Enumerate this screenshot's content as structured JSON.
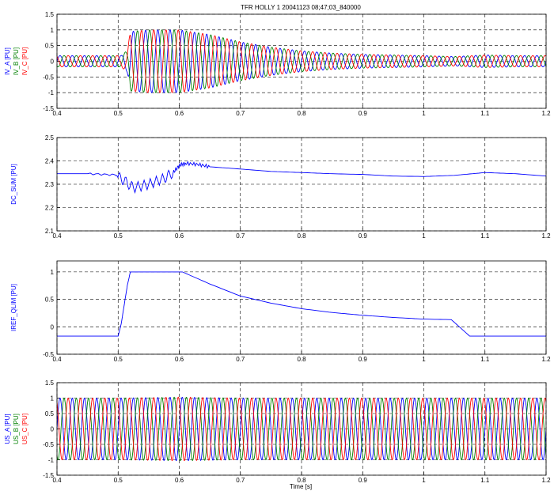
{
  "title": "TFR HOLLY 1 20041123 08;47;03_840000",
  "xlabel": "Time [s]",
  "chart_data": [
    {
      "type": "line",
      "panel": "IV",
      "xlim": [
        0.4,
        1.2
      ],
      "ylim": [
        -1.5,
        1.5
      ],
      "xticks": [
        "0.4",
        "0.5",
        "0.6",
        "0.7",
        "0.8",
        "0.9",
        "1",
        "1.1",
        "1.2"
      ],
      "yticks": [
        "-1.5",
        "-1",
        "-0.5",
        "0",
        "0.5",
        "1",
        "1.5"
      ],
      "grid": true,
      "ylabels": [
        {
          "text": "IV_A [PU]",
          "color": "#0000ff"
        },
        {
          "text": "IV_B [PU]",
          "color": "#008000"
        },
        {
          "text": "IV_C [PU]",
          "color": "#ff0000"
        }
      ],
      "series": [
        {
          "name": "IV_A",
          "color": "#0000ff",
          "freq_hz": 50,
          "phase_deg": 0
        },
        {
          "name": "IV_B",
          "color": "#008000",
          "freq_hz": 50,
          "phase_deg": -120
        },
        {
          "name": "IV_C",
          "color": "#ff0000",
          "freq_hz": 50,
          "phase_deg": 120
        }
      ],
      "amplitude_envelope": {
        "x": [
          0.4,
          0.505,
          0.515,
          0.52,
          0.55,
          0.6,
          0.65,
          0.7,
          0.75,
          0.8,
          0.85,
          0.9,
          0.95,
          1.0,
          1.05,
          1.1,
          1.15,
          1.2
        ],
        "y": [
          0.18,
          0.18,
          0.35,
          0.95,
          1.0,
          1.0,
          0.85,
          0.62,
          0.45,
          0.33,
          0.26,
          0.22,
          0.2,
          0.18,
          0.15,
          0.2,
          0.18,
          0.18
        ]
      }
    },
    {
      "type": "line",
      "panel": "DC_SUM",
      "xlim": [
        0.4,
        1.2
      ],
      "ylim": [
        2.1,
        2.5
      ],
      "xticks": [
        "0.4",
        "0.5",
        "0.6",
        "0.7",
        "0.8",
        "0.9",
        "1",
        "1.1",
        "1.2"
      ],
      "yticks": [
        "2.1",
        "2.2",
        "2.3",
        "2.4",
        "2.5"
      ],
      "grid": true,
      "ylabels": [
        {
          "text": "DC_SUM [PU]",
          "color": "#0000ff"
        }
      ],
      "series": [
        {
          "name": "DC_SUM",
          "color": "#0000ff",
          "x": [
            0.4,
            0.45,
            0.495,
            0.51,
            0.525,
            0.55,
            0.575,
            0.59,
            0.6,
            0.61,
            0.63,
            0.65,
            0.7,
            0.75,
            0.8,
            0.85,
            0.9,
            0.95,
            1.0,
            1.05,
            1.1,
            1.15,
            1.2
          ],
          "y": [
            2.345,
            2.345,
            2.34,
            2.315,
            2.285,
            2.3,
            2.325,
            2.35,
            2.38,
            2.39,
            2.385,
            2.375,
            2.365,
            2.355,
            2.35,
            2.345,
            2.342,
            2.335,
            2.333,
            2.338,
            2.35,
            2.345,
            2.335
          ]
        }
      ]
    },
    {
      "type": "line",
      "panel": "IREF_QLIM",
      "xlim": [
        0.4,
        1.2
      ],
      "ylim": [
        -0.5,
        1.2
      ],
      "xticks": [
        "0.4",
        "0.5",
        "0.6",
        "0.7",
        "0.8",
        "0.9",
        "1",
        "1.1",
        "1.2"
      ],
      "yticks": [
        "-0.5",
        "0",
        "0.5",
        "1"
      ],
      "grid": true,
      "ylabels": [
        {
          "text": "IREF_QLIM [PU]",
          "color": "#0000ff"
        }
      ],
      "series": [
        {
          "name": "IREF_QLIM",
          "color": "#0000ff",
          "x": [
            0.4,
            0.5,
            0.505,
            0.51,
            0.515,
            0.52,
            0.605,
            0.65,
            0.7,
            0.75,
            0.8,
            0.85,
            0.9,
            0.95,
            1.0,
            1.045,
            1.075,
            1.2
          ],
          "y": [
            -0.17,
            -0.17,
            0.05,
            0.4,
            0.75,
            1.0,
            1.0,
            0.78,
            0.56,
            0.43,
            0.33,
            0.26,
            0.21,
            0.17,
            0.14,
            0.13,
            -0.17,
            -0.17
          ]
        }
      ]
    },
    {
      "type": "line",
      "panel": "US",
      "xlim": [
        0.4,
        1.2
      ],
      "ylim": [
        -1.5,
        1.5
      ],
      "xticks": [
        "0.4",
        "0.5",
        "0.6",
        "0.7",
        "0.8",
        "0.9",
        "1",
        "1.1",
        "1.2"
      ],
      "yticks": [
        "-1.5",
        "-1",
        "-0.5",
        "0",
        "0.5",
        "1",
        "1.5"
      ],
      "grid": true,
      "ylabels": [
        {
          "text": "US_A [PU]",
          "color": "#0000ff"
        },
        {
          "text": "US_B [PU]",
          "color": "#008000"
        },
        {
          "text": "US_C [PU]",
          "color": "#ff0000"
        }
      ],
      "series": [
        {
          "name": "US_A",
          "color": "#0000ff",
          "freq_hz": 50,
          "phase_deg": 0
        },
        {
          "name": "US_B",
          "color": "#008000",
          "freq_hz": 50,
          "phase_deg": -120
        },
        {
          "name": "US_C",
          "color": "#ff0000",
          "freq_hz": 50,
          "phase_deg": 120
        }
      ],
      "amplitude_envelope": {
        "x": [
          0.4,
          0.5,
          0.6,
          0.7,
          1.2
        ],
        "y": [
          1.0,
          1.0,
          1.03,
          1.0,
          1.0
        ]
      }
    }
  ]
}
